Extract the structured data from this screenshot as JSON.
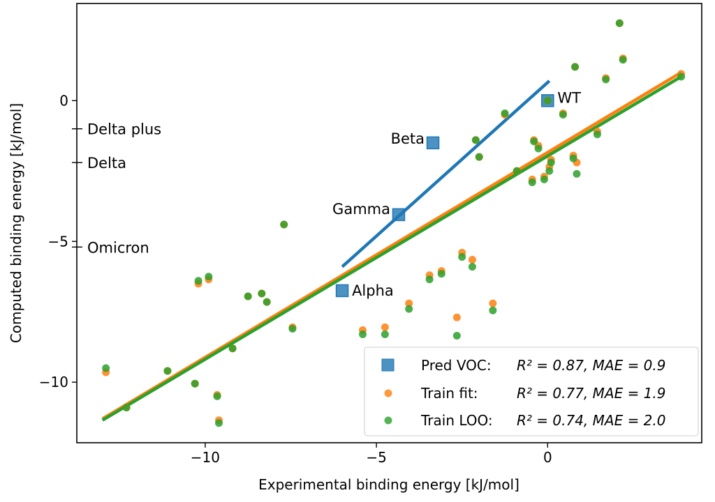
{
  "chart_data": {
    "type": "scatter",
    "xlabel": "Experimental binding energy [kJ/mol]",
    "ylabel": "Computed binding energy [kJ/mol]",
    "xlim": [
      -13.75,
      4.5
    ],
    "ylim": [
      -12.15,
      3.45
    ],
    "xticks": [
      -10,
      -5,
      0
    ],
    "yticks": [
      0,
      -5,
      -10
    ],
    "grid": false,
    "legend_placement": "lower-right",
    "colors": {
      "pred": "#1f77b4",
      "fit": "#ff7f0e",
      "loo": "#2ca02c"
    },
    "legend": [
      {
        "marker": "square",
        "label": "Pred VOC:",
        "stats": "R² = 0.87, MAE = 0.9",
        "r2": "0.87",
        "mae": "0.9"
      },
      {
        "marker": "circle",
        "label": "Train fit:",
        "stats": "R² = 0.77, MAE = 1.9",
        "r2": "0.77",
        "mae": "1.9"
      },
      {
        "marker": "circle",
        "label": "Train LOO:",
        "stats": "R² = 0.74, MAE = 2.0",
        "r2": "0.74",
        "mae": "2.0"
      }
    ],
    "voc_points": [
      {
        "name": "WT",
        "x": 0,
        "y": 0
      },
      {
        "name": "Beta",
        "x": -3.35,
        "y": -1.5
      },
      {
        "name": "Gamma",
        "x": -4.35,
        "y": -4.05
      },
      {
        "name": "Alpha",
        "x": -6.0,
        "y": -6.75
      }
    ],
    "voc_axis_labels": [
      {
        "name": "Delta plus",
        "y": -1.0
      },
      {
        "name": "Delta",
        "y": -2.2
      },
      {
        "name": "Omicron",
        "y": -5.2
      }
    ],
    "train": {
      "x": [
        -12.9,
        -12.3,
        -11.1,
        -10.3,
        -10.2,
        -9.9,
        -9.65,
        -9.6,
        -9.2,
        -8.75,
        -8.35,
        -8.2,
        -7.7,
        -7.45,
        -5.4,
        -4.75,
        -4.05,
        -3.45,
        -3.1,
        -2.5,
        -2.2,
        -2.65,
        -1.6,
        -1.25,
        -2.1,
        -2.0,
        -0.9,
        -0.4,
        -0.27,
        -0.45,
        -0.1,
        0.1,
        0.05,
        0.75,
        0.85,
        0.45,
        1.45,
        0.8,
        1.7,
        2.2,
        2.1,
        3.9,
        0
      ],
      "fit": [
        -9.65,
        -10.9,
        -9.6,
        -10.05,
        -6.5,
        -6.35,
        -10.45,
        -11.35,
        -8.8,
        -6.95,
        -6.85,
        -7.15,
        -4.4,
        -8.05,
        -8.15,
        -8.05,
        -7.2,
        -6.2,
        -6.05,
        -5.4,
        -5.65,
        -7.7,
        -7.2,
        -0.5,
        -1.4,
        -2.0,
        -2.5,
        -1.4,
        -1.6,
        -2.8,
        -2.7,
        -2.1,
        -2.35,
        -1.95,
        -2.2,
        -0.45,
        -1.1,
        1.2,
        0.8,
        1.5,
        2.75,
        0.95,
        0
      ],
      "loo": [
        -9.5,
        -10.9,
        -9.6,
        -10.05,
        -6.4,
        -6.25,
        -10.5,
        -11.45,
        -8.8,
        -6.95,
        -6.85,
        -7.15,
        -4.4,
        -8.1,
        -8.3,
        -8.3,
        -7.4,
        -6.35,
        -6.15,
        -5.55,
        -5.9,
        -8.35,
        -7.45,
        -0.45,
        -1.4,
        -2.0,
        -2.5,
        -1.45,
        -1.7,
        -2.9,
        -2.8,
        -2.2,
        -2.5,
        -2.05,
        -2.6,
        -0.5,
        -1.2,
        1.2,
        0.75,
        1.45,
        2.75,
        0.85,
        0
      ]
    },
    "fit_lines": {
      "pred": [
        [
          -6.0,
          -5.9
        ],
        [
          0.05,
          0.7
        ]
      ],
      "fit": [
        [
          -13.0,
          -11.3
        ],
        [
          3.9,
          1.0
        ]
      ],
      "loo": [
        [
          -13.0,
          -11.35
        ],
        [
          3.9,
          0.85
        ]
      ]
    }
  }
}
